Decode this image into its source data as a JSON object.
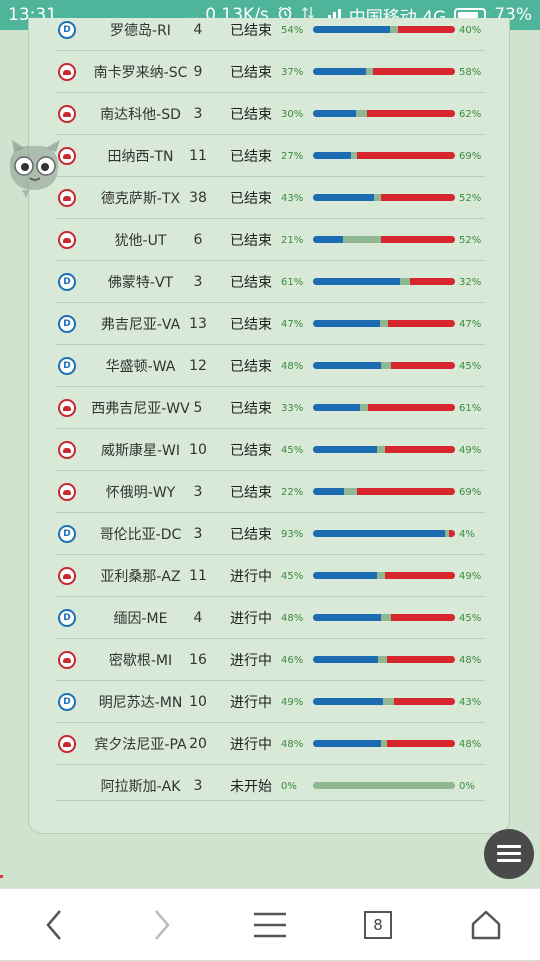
{
  "statusbar": {
    "time": "13:31",
    "net_speed": "... 0.13K/s",
    "carrier": "中国移动 4G",
    "battery": "73%",
    "icons": [
      "alarm-icon",
      "data-arrows-icon",
      "signal-icon",
      "battery-icon"
    ]
  },
  "colors": {
    "dem": "#1d6bb3",
    "rep": "#d7262e",
    "other": "#8fb792",
    "status_bar": "#4fb59a"
  },
  "states": [
    {
      "party": "dem",
      "name": "罗德岛-RI",
      "votes": "4",
      "status": "已结束",
      "dem_pct": "54%",
      "rep_pct": "40%",
      "dem": 54,
      "rep": 40
    },
    {
      "party": "rep",
      "name": "南卡罗来纳-SC",
      "votes": "9",
      "status": "已结束",
      "dem_pct": "37%",
      "rep_pct": "58%",
      "dem": 37,
      "rep": 58
    },
    {
      "party": "rep",
      "name": "南达科他-SD",
      "votes": "3",
      "status": "已结束",
      "dem_pct": "30%",
      "rep_pct": "62%",
      "dem": 30,
      "rep": 62
    },
    {
      "party": "rep",
      "name": "田纳西-TN",
      "votes": "11",
      "status": "已结束",
      "dem_pct": "27%",
      "rep_pct": "69%",
      "dem": 27,
      "rep": 69
    },
    {
      "party": "rep",
      "name": "德克萨斯-TX",
      "votes": "38",
      "status": "已结束",
      "dem_pct": "43%",
      "rep_pct": "52%",
      "dem": 43,
      "rep": 52
    },
    {
      "party": "rep",
      "name": "犹他-UT",
      "votes": "6",
      "status": "已结束",
      "dem_pct": "21%",
      "rep_pct": "52%",
      "dem": 21,
      "rep": 52
    },
    {
      "party": "dem",
      "name": "佛蒙特-VT",
      "votes": "3",
      "status": "已结束",
      "dem_pct": "61%",
      "rep_pct": "32%",
      "dem": 61,
      "rep": 32
    },
    {
      "party": "dem",
      "name": "弗吉尼亚-VA",
      "votes": "13",
      "status": "已结束",
      "dem_pct": "47%",
      "rep_pct": "47%",
      "dem": 47,
      "rep": 47
    },
    {
      "party": "dem",
      "name": "华盛顿-WA",
      "votes": "12",
      "status": "已结束",
      "dem_pct": "48%",
      "rep_pct": "45%",
      "dem": 48,
      "rep": 45
    },
    {
      "party": "rep",
      "name": "西弗吉尼亚-WV",
      "votes": "5",
      "status": "已结束",
      "dem_pct": "33%",
      "rep_pct": "61%",
      "dem": 33,
      "rep": 61
    },
    {
      "party": "rep",
      "name": "威斯康星-WI",
      "votes": "10",
      "status": "已结束",
      "dem_pct": "45%",
      "rep_pct": "49%",
      "dem": 45,
      "rep": 49
    },
    {
      "party": "rep",
      "name": "怀俄明-WY",
      "votes": "3",
      "status": "已结束",
      "dem_pct": "22%",
      "rep_pct": "69%",
      "dem": 22,
      "rep": 69
    },
    {
      "party": "dem",
      "name": "哥伦比亚-DC",
      "votes": "3",
      "status": "已结束",
      "dem_pct": "93%",
      "rep_pct": "4%",
      "dem": 93,
      "rep": 4
    },
    {
      "party": "rep",
      "name": "亚利桑那-AZ",
      "votes": "11",
      "status": "进行中",
      "dem_pct": "45%",
      "rep_pct": "49%",
      "dem": 45,
      "rep": 49
    },
    {
      "party": "dem",
      "name": "缅因-ME",
      "votes": "4",
      "status": "进行中",
      "dem_pct": "48%",
      "rep_pct": "45%",
      "dem": 48,
      "rep": 45
    },
    {
      "party": "rep",
      "name": "密歇根-MI",
      "votes": "16",
      "status": "进行中",
      "dem_pct": "46%",
      "rep_pct": "48%",
      "dem": 46,
      "rep": 48
    },
    {
      "party": "dem",
      "name": "明尼苏达-MN",
      "votes": "10",
      "status": "进行中",
      "dem_pct": "49%",
      "rep_pct": "43%",
      "dem": 49,
      "rep": 43
    },
    {
      "party": "rep",
      "name": "宾夕法尼亚-PA",
      "votes": "20",
      "status": "进行中",
      "dem_pct": "48%",
      "rep_pct": "48%",
      "dem": 48,
      "rep": 48
    },
    {
      "party": "none",
      "name": "阿拉斯加-AK",
      "votes": "3",
      "status": "未开始",
      "dem_pct": "0%",
      "rep_pct": "0%",
      "dem": 0,
      "rep": 0
    }
  ],
  "bottom_nav": {
    "tab_count": "8",
    "icons": [
      "back-arrow-icon",
      "forward-arrow-icon",
      "menu-icon",
      "tabs-icon",
      "home-icon"
    ]
  },
  "fab": {
    "icon": "hamburger-menu-icon"
  }
}
